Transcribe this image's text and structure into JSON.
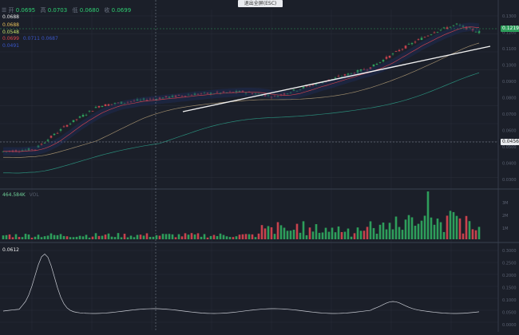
{
  "toolbar": {
    "ohlc_icon": "candles-icon"
  },
  "ohlc": [
    {
      "key": "开",
      "value": "0.0695"
    },
    {
      "key": "高",
      "value": "0.0703"
    },
    {
      "key": "低",
      "value": "0.0680"
    },
    {
      "key": "收",
      "value": "0.0699"
    }
  ],
  "legend": {
    "ma1": "0.0688",
    "ma2": "0.0688",
    "ma3": "0.0548",
    "boll": "0.0699",
    "boll_extra": "0.0711  0.0687",
    "extra": "0.0491"
  },
  "exit_tip": "退出全屏(ESC)",
  "price_tags": {
    "last": "0.1219",
    "cursor": "0.0456"
  },
  "volume": {
    "label": "464.584K",
    "sub": "VOL"
  },
  "indicator": {
    "label": "0.0612"
  },
  "colors": {
    "up": "#2e9e5b",
    "down": "#c8424d",
    "bg": "#1b1f29",
    "grid": "#2a2f3b"
  },
  "axes": {
    "price_ticks": [
      "0.1300",
      "0.1200",
      "0.1100",
      "0.1000",
      "0.0900",
      "0.0800",
      "0.0700",
      "0.0600",
      "0.0500",
      "0.0400",
      "0.0300"
    ],
    "volume_ticks": [
      "3M",
      "2M",
      "1M"
    ],
    "indicator_ticks": [
      "0.3000",
      "0.2500",
      "0.2000",
      "0.1500",
      "0.1000",
      "0.0500",
      "0.0000"
    ]
  }
}
